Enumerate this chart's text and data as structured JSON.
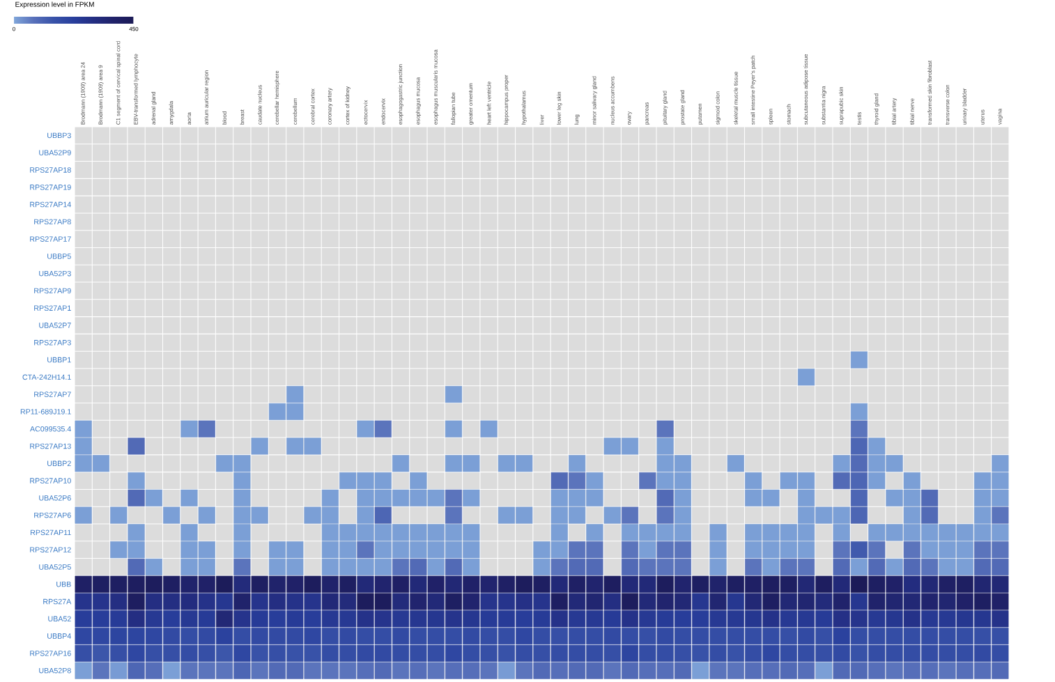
{
  "chart_data": {
    "type": "heatmap",
    "clabel": "Expression level in FPKM",
    "clim": [
      0,
      450
    ],
    "cticks": [
      0,
      450
    ],
    "categories": [
      "Brodmann (1909) area 24",
      "Brodmann (1909) area 9",
      "C1 segment of cervical spinal cord",
      "EBV-transformed lymphocyte",
      "adrenal gland",
      "amygdala",
      "aorta",
      "atrium auricular region",
      "blood",
      "breast",
      "caudate nucleus",
      "cerebellar hemisphere",
      "cerebellum",
      "cerebral cortex",
      "coronary artery",
      "cortex of kidney",
      "ectocervix",
      "endocervix",
      "esophagogastric junction",
      "esophagus mucosa",
      "esophagus muscularis mucosa",
      "fallopian tube",
      "greater omentum",
      "heart left ventricle",
      "hippocampus proper",
      "hypothalamus",
      "liver",
      "lower leg skin",
      "lung",
      "minor salivary gland",
      "nucleus accumbens",
      "ovary",
      "pancreas",
      "pituitary gland",
      "prostate gland",
      "putamen",
      "sigmoid colon",
      "skeletal muscle tissue",
      "small intestine Peyer's patch",
      "spleen",
      "stomach",
      "subcutaneous adipose tissue",
      "substantia nigra",
      "suprapubic skin",
      "testis",
      "thyroid gland",
      "tibial artery",
      "tibial nerve",
      "transformed skin fibroblast",
      "transverse colon",
      "urinary bladder",
      "uterus",
      "vagina"
    ],
    "y_categories": [
      "UBBP3",
      "UBA52P9",
      "RPS27AP18",
      "RPS27AP19",
      "RPS27AP14",
      "RPS27AP8",
      "RPS27AP17",
      "UBBP5",
      "UBA52P3",
      "RPS27AP9",
      "RPS27AP1",
      "UBA52P7",
      "RPS27AP3",
      "UBBP1",
      "CTA-242H14.1",
      "RPS27AP7",
      "RP11-689J19.1",
      "AC099535.4",
      "RPS27AP13",
      "UBBP2",
      "RPS27AP10",
      "UBA52P6",
      "RPS27AP6",
      "RPS27AP11",
      "RPS27AP12",
      "UBA52P5",
      "UBB",
      "RPS27A",
      "UBA52",
      "UBBP4",
      "RPS27AP16",
      "UBA52P8"
    ],
    "cells": [
      [
        null,
        null,
        null,
        null,
        null,
        null,
        null,
        null,
        null,
        null,
        null,
        null,
        null,
        null,
        null,
        null,
        null,
        null,
        null,
        null,
        null,
        null,
        null,
        null,
        null,
        null,
        null,
        null,
        null,
        null,
        null,
        null,
        null,
        null,
        null,
        null,
        null,
        null,
        null,
        null,
        null,
        null,
        null,
        null,
        null,
        null,
        null,
        null,
        null,
        null,
        null,
        null,
        null
      ],
      [
        null,
        null,
        null,
        null,
        null,
        null,
        null,
        null,
        null,
        null,
        null,
        null,
        null,
        null,
        null,
        null,
        null,
        null,
        null,
        null,
        null,
        null,
        null,
        null,
        null,
        null,
        null,
        null,
        null,
        null,
        null,
        null,
        null,
        null,
        null,
        null,
        null,
        null,
        null,
        null,
        null,
        null,
        null,
        null,
        null,
        null,
        null,
        null,
        null,
        null,
        null,
        null,
        null
      ],
      [
        null,
        null,
        null,
        null,
        null,
        null,
        null,
        null,
        null,
        null,
        null,
        null,
        null,
        null,
        null,
        null,
        null,
        null,
        null,
        null,
        null,
        null,
        null,
        null,
        null,
        null,
        null,
        null,
        null,
        null,
        null,
        null,
        null,
        null,
        null,
        null,
        null,
        null,
        null,
        null,
        null,
        null,
        null,
        null,
        null,
        null,
        null,
        null,
        null,
        null,
        null,
        null,
        null
      ],
      [
        null,
        null,
        null,
        null,
        null,
        null,
        null,
        null,
        null,
        null,
        null,
        null,
        null,
        null,
        null,
        null,
        null,
        null,
        null,
        null,
        null,
        null,
        null,
        null,
        null,
        null,
        null,
        null,
        null,
        null,
        null,
        null,
        null,
        null,
        null,
        null,
        null,
        null,
        null,
        null,
        null,
        null,
        null,
        null,
        null,
        null,
        null,
        null,
        null,
        null,
        null,
        null,
        null
      ],
      [
        null,
        null,
        null,
        null,
        null,
        null,
        null,
        null,
        null,
        null,
        null,
        null,
        null,
        null,
        null,
        null,
        null,
        null,
        null,
        null,
        null,
        null,
        null,
        null,
        null,
        null,
        null,
        null,
        null,
        null,
        null,
        null,
        null,
        null,
        null,
        null,
        null,
        null,
        null,
        null,
        null,
        null,
        null,
        null,
        null,
        null,
        null,
        null,
        null,
        null,
        null,
        null,
        null
      ],
      [
        null,
        null,
        null,
        null,
        null,
        null,
        null,
        null,
        null,
        null,
        null,
        null,
        null,
        null,
        null,
        null,
        null,
        null,
        null,
        null,
        null,
        null,
        null,
        null,
        null,
        null,
        null,
        null,
        null,
        null,
        null,
        null,
        null,
        null,
        null,
        null,
        null,
        null,
        null,
        null,
        null,
        null,
        null,
        null,
        null,
        null,
        null,
        null,
        null,
        null,
        null,
        null,
        null
      ],
      [
        null,
        null,
        null,
        null,
        null,
        null,
        null,
        null,
        null,
        null,
        null,
        null,
        null,
        null,
        null,
        null,
        null,
        null,
        null,
        null,
        null,
        null,
        null,
        null,
        null,
        null,
        null,
        null,
        null,
        null,
        null,
        null,
        null,
        null,
        null,
        null,
        null,
        null,
        null,
        null,
        null,
        null,
        null,
        null,
        null,
        null,
        null,
        null,
        null,
        null,
        null,
        null,
        null
      ],
      [
        null,
        null,
        null,
        null,
        null,
        null,
        null,
        null,
        null,
        null,
        null,
        null,
        null,
        null,
        null,
        null,
        null,
        null,
        null,
        null,
        null,
        null,
        null,
        null,
        null,
        null,
        null,
        null,
        null,
        null,
        null,
        null,
        null,
        null,
        null,
        null,
        null,
        null,
        null,
        null,
        null,
        null,
        null,
        null,
        null,
        null,
        null,
        null,
        null,
        null,
        null,
        null,
        null
      ],
      [
        null,
        null,
        null,
        null,
        null,
        null,
        null,
        null,
        null,
        null,
        null,
        null,
        null,
        null,
        null,
        null,
        null,
        null,
        null,
        null,
        null,
        null,
        null,
        null,
        null,
        null,
        null,
        null,
        null,
        null,
        null,
        null,
        null,
        null,
        null,
        null,
        null,
        null,
        null,
        null,
        null,
        null,
        null,
        null,
        null,
        null,
        null,
        null,
        null,
        null,
        null,
        null,
        null
      ],
      [
        null,
        null,
        null,
        null,
        null,
        null,
        null,
        null,
        null,
        null,
        null,
        null,
        null,
        null,
        null,
        null,
        null,
        null,
        null,
        null,
        null,
        null,
        null,
        null,
        null,
        null,
        null,
        null,
        null,
        null,
        null,
        null,
        null,
        null,
        null,
        null,
        null,
        null,
        null,
        null,
        null,
        null,
        null,
        null,
        null,
        null,
        null,
        null,
        null,
        null,
        null,
        null,
        null
      ],
      [
        null,
        null,
        null,
        null,
        null,
        null,
        null,
        null,
        null,
        null,
        null,
        null,
        null,
        null,
        null,
        null,
        null,
        null,
        null,
        null,
        null,
        null,
        null,
        null,
        null,
        null,
        null,
        null,
        null,
        null,
        null,
        null,
        null,
        null,
        null,
        null,
        null,
        null,
        null,
        null,
        null,
        null,
        null,
        null,
        null,
        null,
        null,
        null,
        null,
        null,
        null,
        null,
        null
      ],
      [
        null,
        null,
        null,
        null,
        null,
        null,
        null,
        null,
        null,
        null,
        null,
        null,
        null,
        null,
        null,
        null,
        null,
        null,
        null,
        null,
        null,
        null,
        null,
        null,
        null,
        null,
        null,
        null,
        null,
        null,
        null,
        null,
        null,
        null,
        null,
        null,
        null,
        null,
        null,
        null,
        null,
        null,
        null,
        null,
        null,
        null,
        null,
        null,
        null,
        null,
        null,
        null,
        null
      ],
      [
        null,
        null,
        null,
        null,
        null,
        null,
        null,
        null,
        null,
        null,
        null,
        null,
        null,
        null,
        null,
        null,
        null,
        null,
        null,
        null,
        null,
        null,
        null,
        null,
        null,
        null,
        null,
        null,
        null,
        null,
        null,
        null,
        null,
        null,
        null,
        null,
        null,
        null,
        null,
        null,
        null,
        null,
        null,
        null,
        null,
        null,
        null,
        null,
        null,
        null,
        null,
        null,
        null
      ],
      [
        null,
        null,
        null,
        null,
        null,
        null,
        null,
        null,
        null,
        null,
        null,
        null,
        null,
        null,
        null,
        null,
        null,
        null,
        null,
        null,
        null,
        null,
        null,
        null,
        null,
        null,
        null,
        null,
        null,
        null,
        null,
        null,
        null,
        null,
        null,
        null,
        null,
        null,
        null,
        null,
        null,
        null,
        null,
        null,
        10,
        null,
        null,
        null,
        null,
        null,
        null,
        null,
        null
      ],
      [
        null,
        null,
        null,
        null,
        null,
        null,
        null,
        null,
        null,
        null,
        null,
        null,
        null,
        null,
        null,
        null,
        null,
        null,
        null,
        null,
        null,
        null,
        null,
        null,
        null,
        null,
        null,
        null,
        null,
        null,
        null,
        null,
        null,
        null,
        null,
        null,
        null,
        null,
        null,
        null,
        null,
        10,
        null,
        null,
        null,
        null,
        null,
        null,
        null,
        null,
        null,
        null,
        null
      ],
      [
        null,
        null,
        null,
        null,
        null,
        null,
        null,
        null,
        null,
        null,
        null,
        null,
        10,
        null,
        null,
        null,
        null,
        null,
        null,
        null,
        null,
        10,
        null,
        null,
        null,
        null,
        null,
        null,
        null,
        null,
        null,
        null,
        null,
        null,
        null,
        null,
        null,
        null,
        null,
        null,
        null,
        null,
        null,
        null,
        null,
        null,
        null,
        null,
        null,
        null,
        null,
        null,
        null
      ],
      [
        null,
        null,
        null,
        null,
        null,
        null,
        null,
        null,
        null,
        null,
        null,
        10,
        10,
        null,
        null,
        null,
        null,
        null,
        null,
        null,
        null,
        null,
        null,
        null,
        null,
        null,
        null,
        null,
        null,
        null,
        null,
        null,
        null,
        null,
        null,
        null,
        null,
        null,
        null,
        null,
        null,
        null,
        null,
        null,
        10,
        null,
        null,
        null,
        null,
        null,
        null,
        null,
        null
      ],
      [
        10,
        null,
        null,
        null,
        null,
        null,
        10,
        70,
        null,
        null,
        null,
        null,
        null,
        null,
        null,
        null,
        10,
        70,
        null,
        null,
        null,
        10,
        null,
        10,
        null,
        null,
        null,
        null,
        null,
        null,
        null,
        null,
        null,
        70,
        null,
        null,
        null,
        null,
        null,
        null,
        null,
        null,
        null,
        null,
        70,
        null,
        null,
        null,
        null,
        null,
        null,
        null,
        null
      ],
      [
        10,
        null,
        null,
        90,
        null,
        null,
        null,
        null,
        null,
        null,
        10,
        null,
        10,
        10,
        null,
        null,
        null,
        null,
        null,
        null,
        null,
        null,
        null,
        null,
        null,
        null,
        null,
        null,
        null,
        null,
        10,
        10,
        null,
        10,
        null,
        null,
        null,
        null,
        null,
        null,
        null,
        null,
        null,
        null,
        100,
        10,
        null,
        null,
        null,
        null,
        null,
        null,
        null
      ],
      [
        10,
        10,
        null,
        null,
        null,
        null,
        null,
        null,
        10,
        10,
        null,
        null,
        null,
        null,
        null,
        null,
        null,
        null,
        10,
        null,
        null,
        10,
        10,
        null,
        10,
        10,
        null,
        null,
        10,
        null,
        null,
        null,
        null,
        10,
        10,
        null,
        null,
        10,
        null,
        null,
        null,
        null,
        null,
        10,
        90,
        10,
        10,
        null,
        null,
        null,
        null,
        null,
        10
      ],
      [
        null,
        null,
        null,
        10,
        null,
        null,
        null,
        null,
        null,
        10,
        null,
        null,
        null,
        null,
        null,
        10,
        10,
        10,
        null,
        10,
        null,
        null,
        null,
        null,
        null,
        null,
        null,
        90,
        70,
        10,
        null,
        null,
        70,
        10,
        10,
        null,
        null,
        null,
        10,
        null,
        10,
        10,
        null,
        90,
        100,
        10,
        null,
        10,
        null,
        null,
        null,
        10,
        10
      ],
      [
        null,
        null,
        null,
        90,
        10,
        null,
        10,
        null,
        null,
        10,
        null,
        null,
        null,
        null,
        10,
        null,
        10,
        10,
        10,
        10,
        10,
        70,
        10,
        null,
        null,
        null,
        null,
        10,
        10,
        10,
        null,
        null,
        null,
        90,
        10,
        null,
        null,
        null,
        10,
        10,
        null,
        10,
        null,
        null,
        100,
        null,
        10,
        10,
        90,
        null,
        null,
        10,
        10
      ],
      [
        10,
        null,
        10,
        null,
        null,
        10,
        null,
        10,
        null,
        10,
        10,
        null,
        null,
        10,
        10,
        null,
        10,
        100,
        null,
        null,
        null,
        70,
        null,
        null,
        10,
        10,
        null,
        10,
        10,
        null,
        10,
        70,
        null,
        70,
        10,
        null,
        null,
        null,
        null,
        null,
        null,
        10,
        10,
        10,
        100,
        null,
        null,
        10,
        90,
        null,
        null,
        10,
        70
      ],
      [
        null,
        null,
        null,
        10,
        null,
        null,
        10,
        null,
        null,
        10,
        null,
        null,
        null,
        null,
        10,
        10,
        10,
        10,
        10,
        10,
        10,
        10,
        10,
        null,
        null,
        null,
        null,
        10,
        null,
        10,
        null,
        10,
        10,
        10,
        10,
        null,
        10,
        null,
        10,
        10,
        10,
        10,
        null,
        10,
        null,
        10,
        10,
        10,
        10,
        10,
        10,
        10,
        10
      ],
      [
        null,
        null,
        10,
        10,
        null,
        null,
        10,
        10,
        null,
        10,
        null,
        10,
        10,
        null,
        10,
        10,
        70,
        10,
        10,
        10,
        10,
        10,
        10,
        null,
        null,
        null,
        10,
        10,
        70,
        70,
        null,
        70,
        10,
        70,
        70,
        null,
        10,
        null,
        10,
        10,
        10,
        10,
        null,
        70,
        130,
        70,
        null,
        70,
        10,
        10,
        10,
        70,
        70
      ],
      [
        null,
        null,
        null,
        90,
        10,
        null,
        10,
        10,
        null,
        70,
        null,
        10,
        10,
        null,
        10,
        10,
        10,
        10,
        70,
        90,
        10,
        90,
        10,
        null,
        null,
        null,
        10,
        70,
        90,
        90,
        null,
        90,
        70,
        70,
        70,
        null,
        10,
        null,
        70,
        10,
        70,
        70,
        null,
        90,
        10,
        90,
        10,
        90,
        70,
        10,
        10,
        90,
        90
      ],
      [
        390,
        400,
        400,
        410,
        420,
        400,
        370,
        380,
        430,
        320,
        400,
        370,
        380,
        420,
        370,
        400,
        330,
        360,
        390,
        330,
        380,
        340,
        380,
        360,
        390,
        420,
        400,
        330,
        390,
        360,
        410,
        330,
        330,
        420,
        360,
        400,
        370,
        400,
        390,
        410,
        400,
        340,
        410,
        330,
        440,
        400,
        380,
        310,
        340,
        390,
        400,
        350,
        340
      ],
      [
        270,
        270,
        300,
        410,
        300,
        300,
        310,
        280,
        260,
        370,
        270,
        300,
        280,
        270,
        330,
        320,
        420,
        420,
        320,
        360,
        330,
        400,
        360,
        270,
        270,
        290,
        270,
        400,
        330,
        350,
        300,
        420,
        330,
        360,
        340,
        260,
        350,
        260,
        340,
        400,
        340,
        350,
        320,
        370,
        260,
        370,
        350,
        340,
        360,
        350,
        380,
        400,
        380
      ],
      [
        230,
        230,
        240,
        300,
        250,
        230,
        250,
        240,
        340,
        270,
        240,
        230,
        240,
        230,
        250,
        250,
        280,
        270,
        250,
        260,
        260,
        270,
        260,
        240,
        240,
        230,
        240,
        280,
        250,
        250,
        240,
        280,
        250,
        240,
        230,
        230,
        250,
        250,
        260,
        280,
        250,
        250,
        240,
        290,
        270,
        250,
        260,
        280,
        250,
        250,
        260,
        260,
        280
      ],
      [
        190,
        190,
        200,
        200,
        190,
        180,
        170,
        180,
        210,
        170,
        180,
        180,
        180,
        190,
        170,
        180,
        170,
        170,
        180,
        170,
        170,
        170,
        180,
        170,
        170,
        190,
        170,
        160,
        170,
        170,
        180,
        170,
        160,
        180,
        170,
        170,
        170,
        170,
        170,
        170,
        160,
        180,
        160,
        210,
        170,
        170,
        170,
        170,
        170,
        170,
        170,
        160,
        160
      ],
      [
        160,
        140,
        160,
        190,
        160,
        160,
        170,
        160,
        140,
        190,
        150,
        160,
        150,
        150,
        170,
        170,
        180,
        180,
        170,
        170,
        170,
        190,
        170,
        160,
        150,
        170,
        160,
        170,
        170,
        170,
        160,
        200,
        170,
        170,
        160,
        150,
        170,
        150,
        170,
        190,
        170,
        170,
        160,
        180,
        150,
        170,
        170,
        170,
        170,
        170,
        170,
        180,
        170
      ],
      [
        10,
        70,
        15,
        100,
        80,
        10,
        70,
        70,
        70,
        100,
        70,
        90,
        90,
        70,
        70,
        70,
        80,
        90,
        70,
        80,
        70,
        80,
        80,
        70,
        15,
        70,
        90,
        80,
        90,
        90,
        70,
        90,
        80,
        80,
        90,
        10,
        70,
        70,
        80,
        80,
        90,
        80,
        10,
        90,
        90,
        80,
        70,
        80,
        80,
        70,
        80,
        80,
        90
      ]
    ]
  }
}
